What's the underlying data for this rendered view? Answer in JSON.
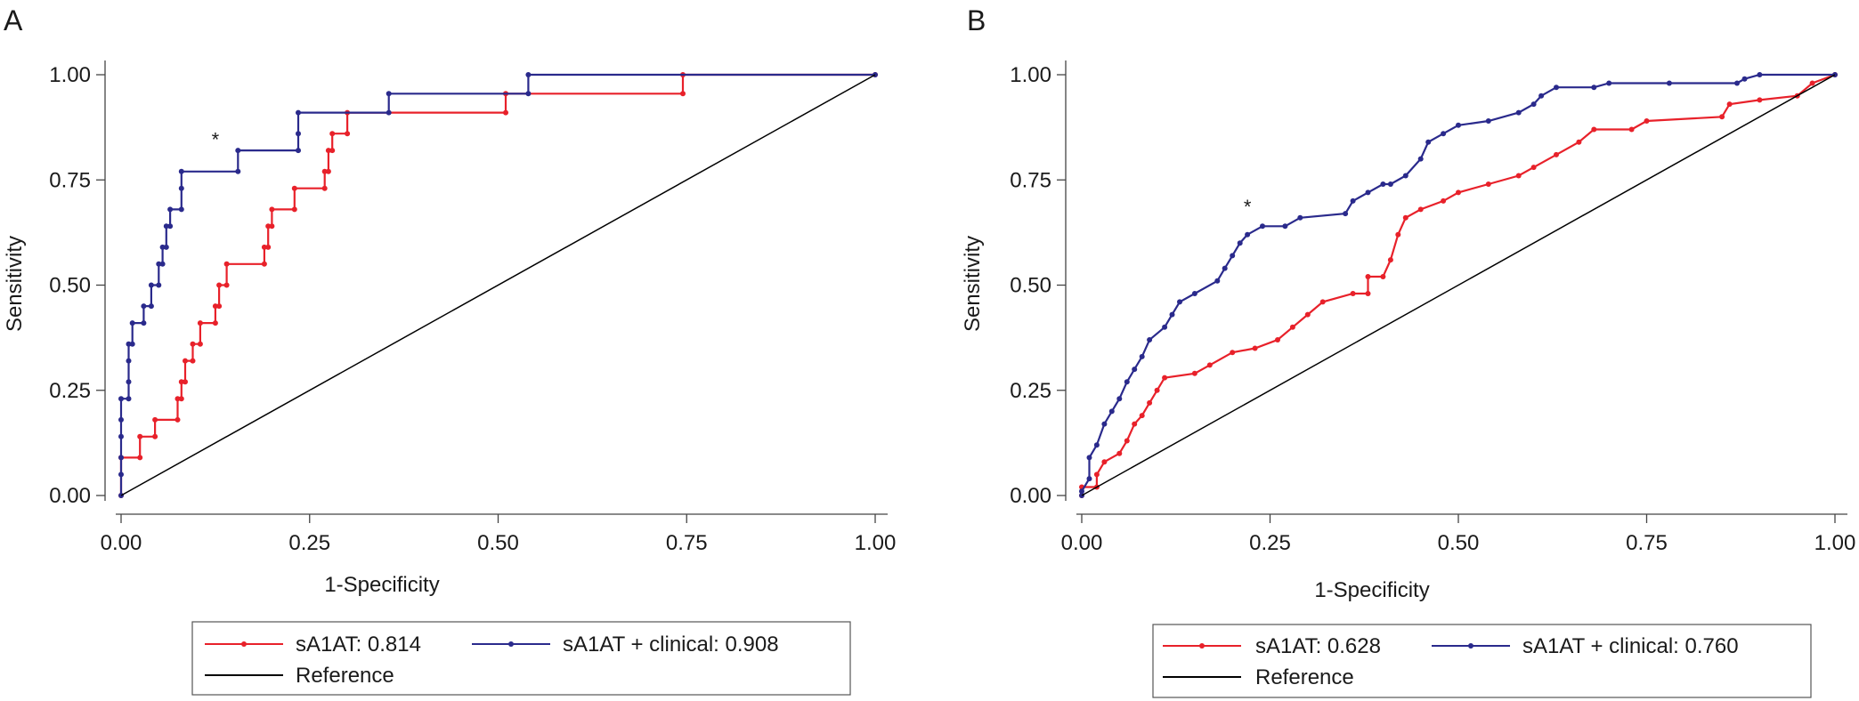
{
  "chart_data": [
    {
      "panel_label": "A",
      "type": "line",
      "xlabel": "1-Specificity",
      "ylabel": "Sensitivity",
      "xlim": [
        0,
        1
      ],
      "ylim": [
        0,
        1
      ],
      "x_ticks": [
        "0.00",
        "0.25",
        "0.50",
        "0.75",
        "1.00"
      ],
      "y_ticks": [
        "0.00",
        "0.25",
        "0.50",
        "0.75",
        "1.00"
      ],
      "grid": false,
      "legend_position": "bottom",
      "annotation": "*",
      "annotation_point": {
        "x": 0.125,
        "y": 0.83
      },
      "series": [
        {
          "name": "sA1AT: 0.814",
          "color": "#e8212a",
          "points": [
            [
              0,
              0
            ],
            [
              0,
              0.09
            ],
            [
              0.025,
              0.09
            ],
            [
              0.025,
              0.14
            ],
            [
              0.045,
              0.14
            ],
            [
              0.045,
              0.18
            ],
            [
              0.075,
              0.18
            ],
            [
              0.075,
              0.23
            ],
            [
              0.08,
              0.23
            ],
            [
              0.08,
              0.27
            ],
            [
              0.085,
              0.27
            ],
            [
              0.085,
              0.32
            ],
            [
              0.095,
              0.32
            ],
            [
              0.095,
              0.36
            ],
            [
              0.105,
              0.36
            ],
            [
              0.105,
              0.41
            ],
            [
              0.125,
              0.41
            ],
            [
              0.125,
              0.45
            ],
            [
              0.13,
              0.45
            ],
            [
              0.13,
              0.5
            ],
            [
              0.14,
              0.5
            ],
            [
              0.14,
              0.55
            ],
            [
              0.19,
              0.55
            ],
            [
              0.19,
              0.59
            ],
            [
              0.195,
              0.59
            ],
            [
              0.195,
              0.64
            ],
            [
              0.2,
              0.64
            ],
            [
              0.2,
              0.68
            ],
            [
              0.23,
              0.68
            ],
            [
              0.23,
              0.73
            ],
            [
              0.27,
              0.73
            ],
            [
              0.27,
              0.77
            ],
            [
              0.275,
              0.77
            ],
            [
              0.275,
              0.82
            ],
            [
              0.28,
              0.82
            ],
            [
              0.28,
              0.86
            ],
            [
              0.3,
              0.86
            ],
            [
              0.3,
              0.91
            ],
            [
              0.51,
              0.91
            ],
            [
              0.51,
              0.955
            ],
            [
              0.745,
              0.955
            ],
            [
              0.745,
              1.0
            ],
            [
              1.0,
              1.0
            ]
          ]
        },
        {
          "name": "sA1AT + clinical: 0.908",
          "color": "#2a2a8c",
          "points": [
            [
              0,
              0
            ],
            [
              0,
              0.05
            ],
            [
              0,
              0.09
            ],
            [
              0,
              0.14
            ],
            [
              0,
              0.18
            ],
            [
              0,
              0.23
            ],
            [
              0.01,
              0.23
            ],
            [
              0.01,
              0.27
            ],
            [
              0.01,
              0.32
            ],
            [
              0.01,
              0.36
            ],
            [
              0.015,
              0.36
            ],
            [
              0.015,
              0.41
            ],
            [
              0.03,
              0.41
            ],
            [
              0.03,
              0.45
            ],
            [
              0.04,
              0.45
            ],
            [
              0.04,
              0.5
            ],
            [
              0.05,
              0.5
            ],
            [
              0.05,
              0.55
            ],
            [
              0.055,
              0.55
            ],
            [
              0.055,
              0.59
            ],
            [
              0.06,
              0.59
            ],
            [
              0.06,
              0.64
            ],
            [
              0.065,
              0.64
            ],
            [
              0.065,
              0.68
            ],
            [
              0.08,
              0.68
            ],
            [
              0.08,
              0.73
            ],
            [
              0.08,
              0.77
            ],
            [
              0.155,
              0.77
            ],
            [
              0.155,
              0.82
            ],
            [
              0.235,
              0.82
            ],
            [
              0.235,
              0.86
            ],
            [
              0.235,
              0.91
            ],
            [
              0.355,
              0.91
            ],
            [
              0.355,
              0.955
            ],
            [
              0.54,
              0.955
            ],
            [
              0.54,
              1.0
            ],
            [
              1.0,
              1.0
            ]
          ]
        },
        {
          "name": "Reference",
          "color": "#000000",
          "points": [
            [
              0,
              0
            ],
            [
              1,
              1
            ]
          ]
        }
      ]
    },
    {
      "panel_label": "B",
      "type": "line",
      "xlabel": "1-Specificity",
      "ylabel": "Sensitivity",
      "xlim": [
        0,
        1
      ],
      "ylim": [
        0,
        1
      ],
      "x_ticks": [
        "0.00",
        "0.25",
        "0.50",
        "0.75",
        "1.00"
      ],
      "y_ticks": [
        "0.00",
        "0.25",
        "0.50",
        "0.75",
        "1.00"
      ],
      "grid": false,
      "legend_position": "bottom",
      "annotation": "*",
      "annotation_point": {
        "x": 0.22,
        "y": 0.67
      },
      "series": [
        {
          "name": "sA1AT: 0.628",
          "color": "#e8212a",
          "points": [
            [
              0,
              0
            ],
            [
              0,
              0.02
            ],
            [
              0.02,
              0.02
            ],
            [
              0.02,
              0.05
            ],
            [
              0.03,
              0.08
            ],
            [
              0.05,
              0.1
            ],
            [
              0.06,
              0.13
            ],
            [
              0.07,
              0.17
            ],
            [
              0.08,
              0.19
            ],
            [
              0.09,
              0.22
            ],
            [
              0.1,
              0.25
            ],
            [
              0.11,
              0.28
            ],
            [
              0.15,
              0.29
            ],
            [
              0.17,
              0.31
            ],
            [
              0.2,
              0.34
            ],
            [
              0.23,
              0.35
            ],
            [
              0.26,
              0.37
            ],
            [
              0.28,
              0.4
            ],
            [
              0.3,
              0.43
            ],
            [
              0.32,
              0.46
            ],
            [
              0.36,
              0.48
            ],
            [
              0.38,
              0.48
            ],
            [
              0.38,
              0.52
            ],
            [
              0.4,
              0.52
            ],
            [
              0.41,
              0.56
            ],
            [
              0.42,
              0.62
            ],
            [
              0.43,
              0.66
            ],
            [
              0.45,
              0.68
            ],
            [
              0.48,
              0.7
            ],
            [
              0.5,
              0.72
            ],
            [
              0.54,
              0.74
            ],
            [
              0.58,
              0.76
            ],
            [
              0.6,
              0.78
            ],
            [
              0.63,
              0.81
            ],
            [
              0.66,
              0.84
            ],
            [
              0.68,
              0.87
            ],
            [
              0.73,
              0.87
            ],
            [
              0.75,
              0.89
            ],
            [
              0.85,
              0.9
            ],
            [
              0.86,
              0.93
            ],
            [
              0.9,
              0.94
            ],
            [
              0.95,
              0.95
            ],
            [
              0.97,
              0.98
            ],
            [
              1.0,
              1.0
            ]
          ]
        },
        {
          "name": "sA1AT + clinical: 0.760",
          "color": "#2a2a8c",
          "points": [
            [
              0,
              0
            ],
            [
              0,
              0.01
            ],
            [
              0.01,
              0.04
            ],
            [
              0.01,
              0.09
            ],
            [
              0.02,
              0.12
            ],
            [
              0.03,
              0.17
            ],
            [
              0.04,
              0.2
            ],
            [
              0.05,
              0.23
            ],
            [
              0.06,
              0.27
            ],
            [
              0.07,
              0.3
            ],
            [
              0.08,
              0.33
            ],
            [
              0.09,
              0.37
            ],
            [
              0.11,
              0.4
            ],
            [
              0.12,
              0.43
            ],
            [
              0.13,
              0.46
            ],
            [
              0.15,
              0.48
            ],
            [
              0.18,
              0.51
            ],
            [
              0.19,
              0.54
            ],
            [
              0.2,
              0.57
            ],
            [
              0.21,
              0.6
            ],
            [
              0.22,
              0.62
            ],
            [
              0.24,
              0.64
            ],
            [
              0.27,
              0.64
            ],
            [
              0.29,
              0.66
            ],
            [
              0.35,
              0.67
            ],
            [
              0.36,
              0.7
            ],
            [
              0.38,
              0.72
            ],
            [
              0.4,
              0.74
            ],
            [
              0.41,
              0.74
            ],
            [
              0.43,
              0.76
            ],
            [
              0.45,
              0.8
            ],
            [
              0.46,
              0.84
            ],
            [
              0.48,
              0.86
            ],
            [
              0.5,
              0.88
            ],
            [
              0.54,
              0.89
            ],
            [
              0.58,
              0.91
            ],
            [
              0.6,
              0.93
            ],
            [
              0.61,
              0.95
            ],
            [
              0.63,
              0.97
            ],
            [
              0.68,
              0.97
            ],
            [
              0.7,
              0.98
            ],
            [
              0.78,
              0.98
            ],
            [
              0.87,
              0.98
            ],
            [
              0.88,
              0.99
            ],
            [
              0.9,
              1.0
            ],
            [
              1.0,
              1.0
            ]
          ]
        },
        {
          "name": "Reference",
          "color": "#000000",
          "points": [
            [
              0,
              0
            ],
            [
              1,
              1
            ]
          ]
        }
      ]
    }
  ]
}
